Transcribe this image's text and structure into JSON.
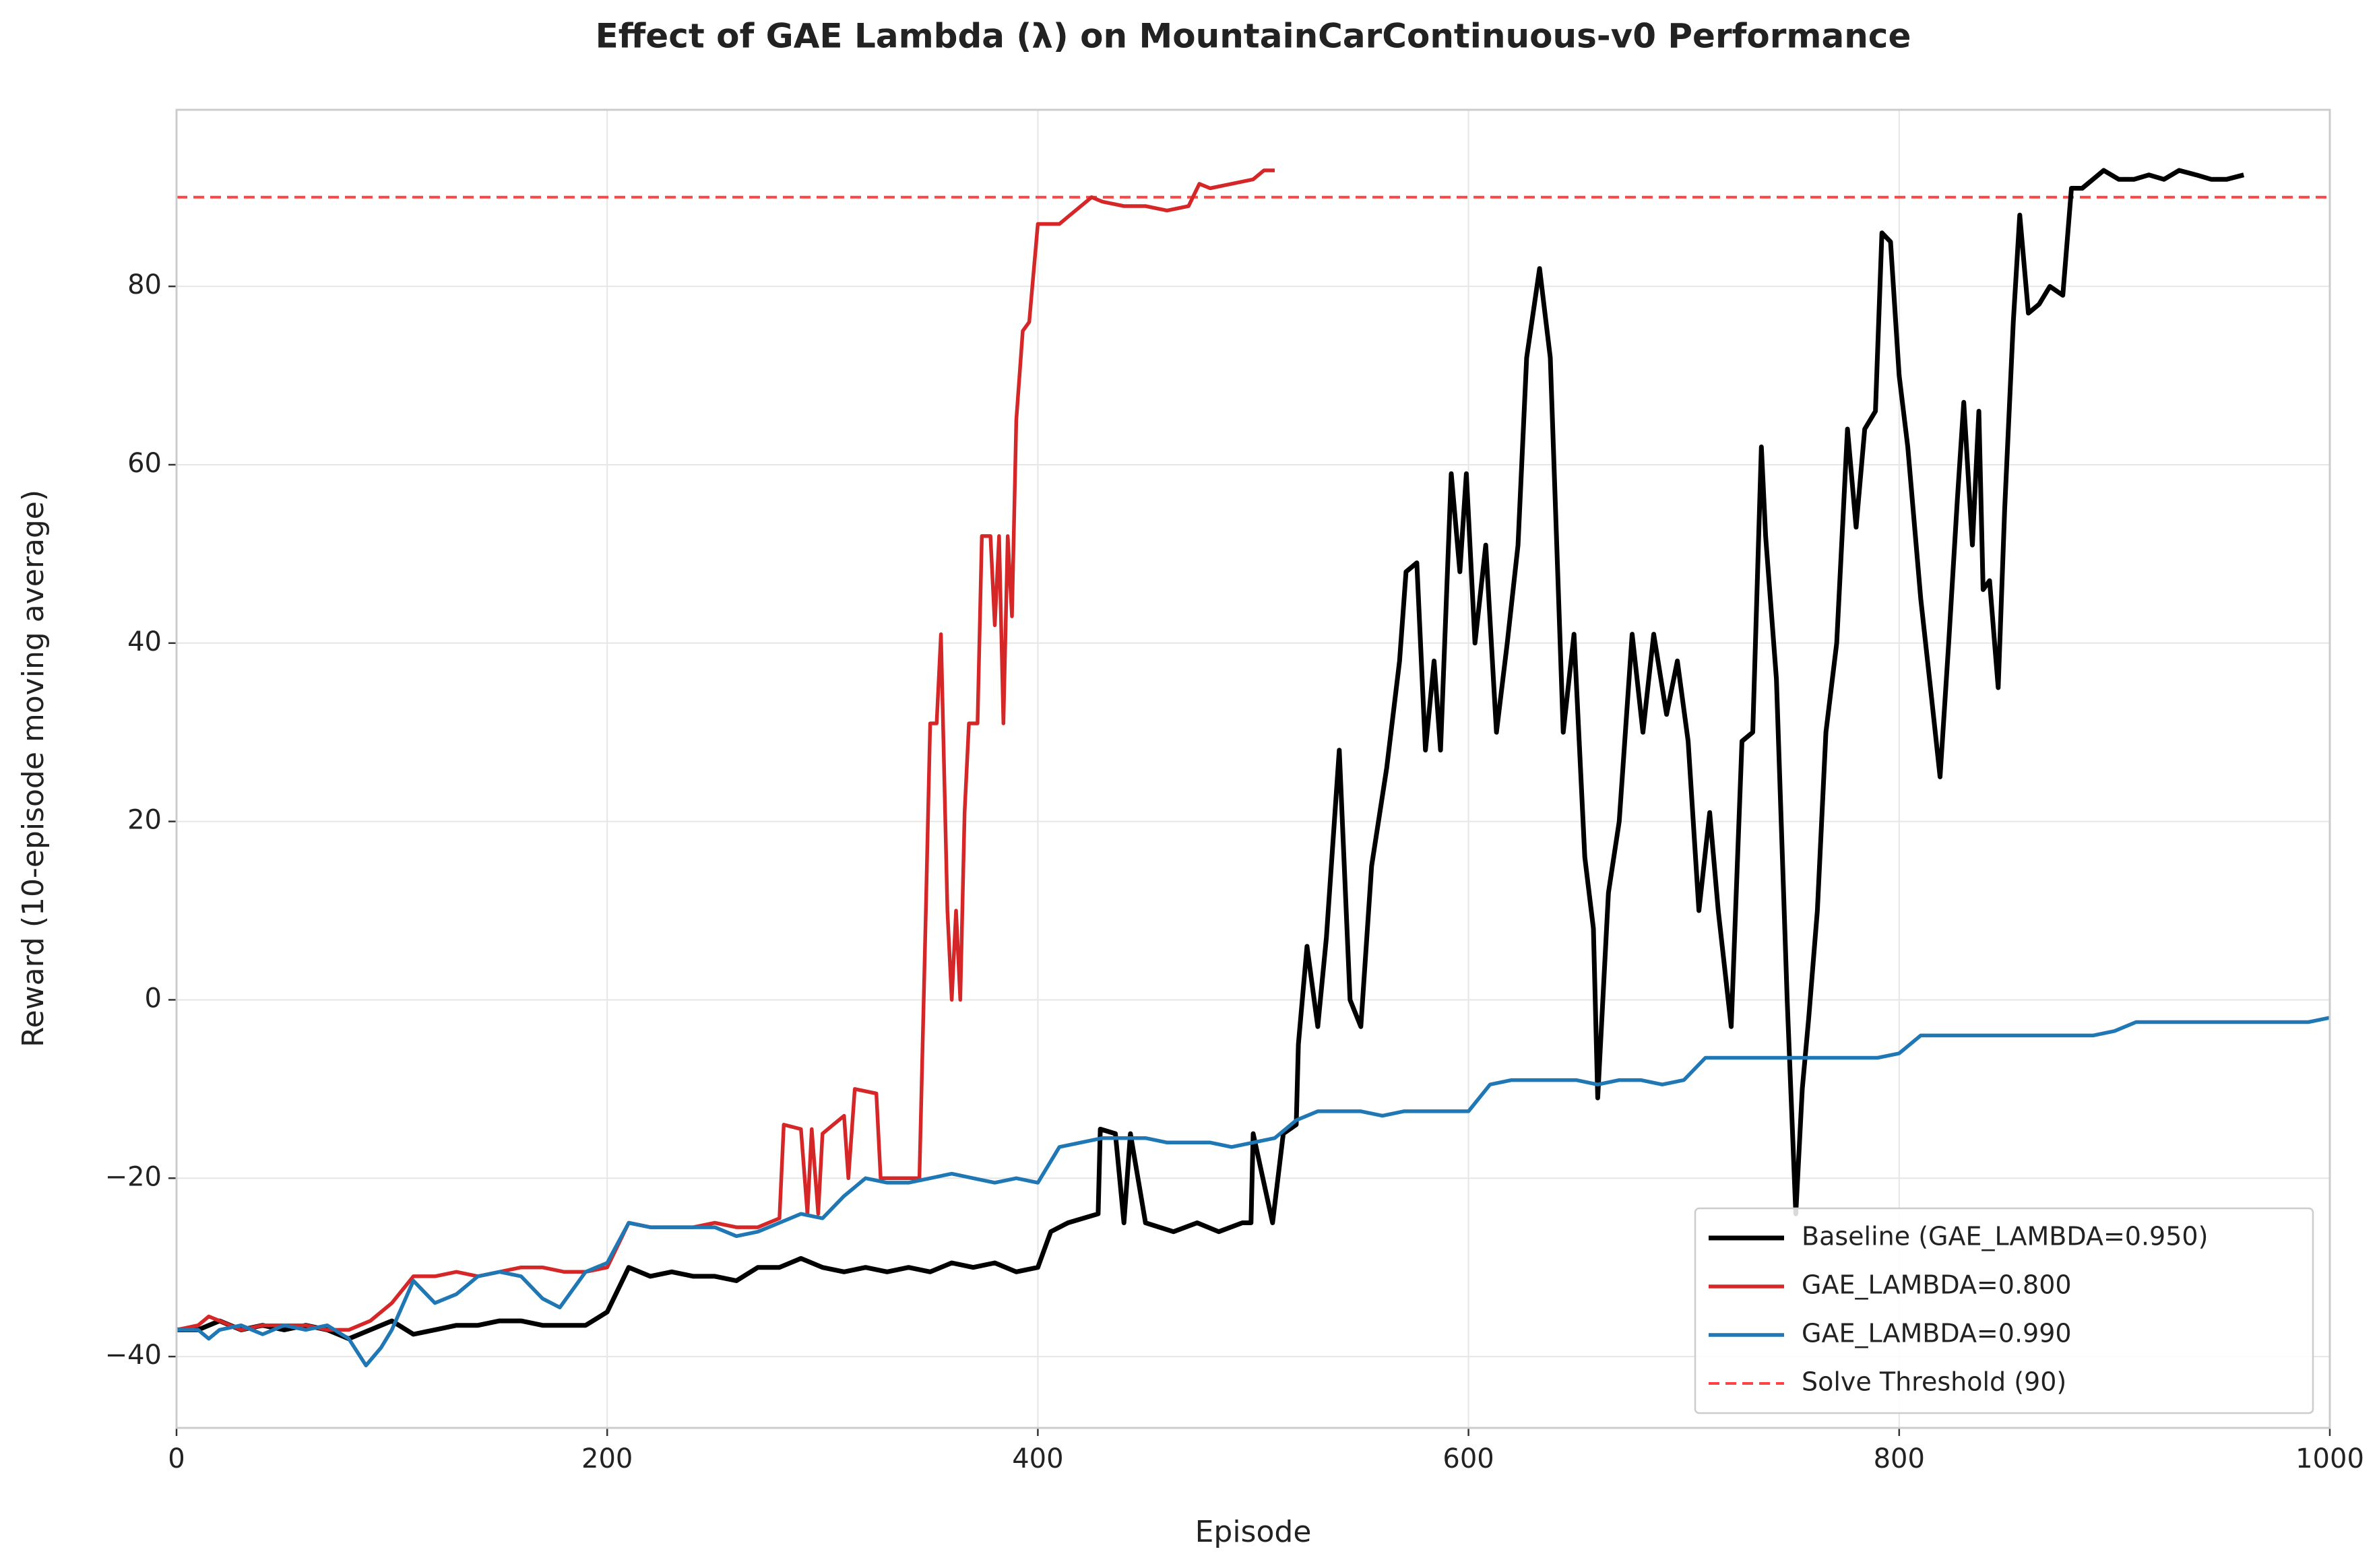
{
  "chart_data": {
    "type": "line",
    "title": "Effect of GAE Lambda (λ) on MountainCarContinuous-v0 Performance",
    "xlabel": "Episode",
    "ylabel": "Reward (10-episode moving average)",
    "xlim": [
      0,
      1000
    ],
    "ylim": [
      -48,
      99.8
    ],
    "xticks": [
      0,
      200,
      400,
      600,
      800,
      1000
    ],
    "yticks": [
      {
        "value": -40,
        "label": "−40"
      },
      {
        "value": -20,
        "label": "−20"
      },
      0,
      20,
      40,
      60,
      80
    ],
    "grid": true,
    "legend": "lower right",
    "series": [
      {
        "name": "Baseline (GAE_LAMBDA=0.950)",
        "color": "#000000",
        "x": [
          0,
          10,
          20,
          30,
          40,
          50,
          60,
          70,
          80,
          90,
          100,
          110,
          120,
          130,
          140,
          150,
          160,
          170,
          180,
          190,
          200,
          210,
          220,
          230,
          240,
          250,
          260,
          270,
          280,
          290,
          300,
          310,
          320,
          330,
          340,
          350,
          360,
          370,
          380,
          390,
          400,
          406,
          414,
          428,
          429,
          436,
          440,
          443,
          450,
          463,
          474,
          484,
          495,
          499,
          500,
          509,
          514,
          520,
          521,
          525,
          530,
          534,
          540,
          545,
          550,
          555,
          562,
          568,
          571,
          576,
          580,
          584,
          587,
          592,
          596,
          599,
          603,
          608,
          613,
          618,
          623,
          627,
          633,
          638,
          644,
          649,
          654,
          658,
          660,
          665,
          670,
          676,
          681,
          686,
          692,
          697,
          702,
          707,
          712,
          716,
          722,
          727,
          732,
          736,
          738,
          743,
          748,
          752,
          755,
          758,
          762,
          766,
          771,
          776,
          780,
          784,
          789,
          792,
          796,
          800,
          804,
          810,
          815,
          819,
          823,
          827,
          830,
          834,
          837,
          839,
          842,
          846,
          849,
          853,
          856,
          860,
          865,
          870,
          876,
          880,
          885,
          890,
          895,
          902,
          909,
          916,
          923,
          930,
          938,
          945,
          952,
          960
        ],
        "values": [
          -37,
          -37,
          -36,
          -37,
          -36.5,
          -37,
          -36.5,
          -37,
          -38,
          -37,
          -36,
          -37.5,
          -37,
          -36.5,
          -36.5,
          -36,
          -36,
          -36.5,
          -36.5,
          -36.5,
          -35,
          -30,
          -31,
          -30.5,
          -31,
          -31,
          -31.5,
          -30,
          -30,
          -29,
          -30,
          -30.5,
          -30,
          -30.5,
          -30,
          -30.5,
          -29.5,
          -30,
          -29.5,
          -30.5,
          -30,
          -26,
          -25,
          -24,
          -14.5,
          -15,
          -25,
          -15,
          -25,
          -26,
          -25,
          -26,
          -25,
          -25,
          -15,
          -25,
          -15,
          -14,
          -5,
          6,
          -3,
          7,
          28,
          0,
          -3,
          15,
          26,
          38,
          48,
          49,
          28,
          38,
          28,
          59,
          48,
          59,
          40,
          51,
          30,
          40,
          51,
          72,
          82,
          72,
          30,
          41,
          16,
          8,
          -11,
          12,
          20,
          41,
          30,
          41,
          32,
          38,
          29,
          10,
          21,
          10,
          -3,
          29,
          30,
          62,
          52,
          36,
          0,
          -24,
          -10,
          -2,
          10,
          30,
          40,
          64,
          53,
          64,
          66,
          86,
          85,
          70,
          62,
          45,
          34,
          25,
          40,
          56,
          67,
          51,
          66,
          46,
          47,
          35,
          55,
          76,
          88,
          77,
          78,
          80,
          79,
          91,
          91,
          92,
          93,
          92,
          92,
          92.5,
          92,
          93,
          92.5,
          92,
          92,
          92.5
        ]
      },
      {
        "name": "GAE_LAMBDA=0.800",
        "color": "#d62728",
        "x": [
          0,
          10,
          15,
          20,
          30,
          40,
          50,
          60,
          70,
          80,
          90,
          100,
          110,
          120,
          130,
          140,
          150,
          160,
          170,
          180,
          190,
          200,
          210,
          220,
          230,
          240,
          250,
          260,
          270,
          280,
          282,
          290,
          293,
          295,
          298,
          300,
          305,
          310,
          312,
          315,
          325,
          327,
          345,
          348,
          350,
          353,
          355,
          358,
          360,
          362,
          364,
          366,
          368,
          372,
          374,
          378,
          380,
          382,
          384,
          386,
          388,
          390,
          393,
          396,
          400,
          405,
          410,
          415,
          420,
          425,
          430,
          440,
          450,
          460,
          470,
          475,
          480,
          490,
          500,
          505,
          510
        ],
        "values": [
          -37,
          -36.5,
          -35.5,
          -36,
          -37,
          -36.5,
          -36.5,
          -36.5,
          -37,
          -37,
          -36,
          -34,
          -31,
          -31,
          -30.5,
          -31,
          -30.5,
          -30,
          -30,
          -30.5,
          -30.5,
          -30,
          -25,
          -25.5,
          -25.5,
          -25.5,
          -25,
          -25.5,
          -25.5,
          -24.5,
          -14,
          -14.5,
          -24,
          -14.5,
          -24,
          -15,
          -14,
          -13,
          -20,
          -10,
          -10.5,
          -20,
          -20,
          10,
          31,
          31,
          41,
          10,
          0,
          10,
          0,
          21,
          31,
          31,
          52,
          52,
          42,
          52,
          31,
          52,
          43,
          65,
          75,
          76,
          87,
          87,
          87,
          88,
          89,
          90,
          89.5,
          89,
          89,
          88.5,
          89,
          91.5,
          91,
          91.5,
          92,
          93,
          93
        ]
      },
      {
        "name": "GAE_LAMBDA=0.990",
        "color": "#1f77b4",
        "x": [
          0,
          10,
          15,
          20,
          30,
          40,
          50,
          60,
          70,
          80,
          88,
          95,
          100,
          110,
          120,
          130,
          140,
          150,
          160,
          170,
          178,
          190,
          200,
          210,
          220,
          230,
          240,
          250,
          260,
          270,
          280,
          290,
          300,
          310,
          320,
          330,
          340,
          350,
          360,
          370,
          380,
          390,
          400,
          410,
          420,
          430,
          440,
          450,
          460,
          470,
          480,
          490,
          500,
          510,
          520,
          530,
          540,
          550,
          560,
          570,
          580,
          590,
          600,
          610,
          620,
          630,
          640,
          650,
          660,
          670,
          680,
          690,
          700,
          710,
          720,
          730,
          740,
          750,
          760,
          770,
          780,
          790,
          800,
          810,
          820,
          830,
          840,
          850,
          860,
          870,
          880,
          890,
          900,
          910,
          920,
          930,
          940,
          950,
          960,
          970,
          980,
          990,
          1000
        ],
        "values": [
          -37,
          -37,
          -38,
          -37,
          -36.5,
          -37.5,
          -36.5,
          -37,
          -36.5,
          -38,
          -41,
          -39,
          -37,
          -31.5,
          -34,
          -33,
          -31,
          -30.5,
          -31,
          -33.5,
          -34.5,
          -30.5,
          -29.5,
          -25,
          -25.5,
          -25.5,
          -25.5,
          -25.5,
          -26.5,
          -26,
          -25,
          -24,
          -24.5,
          -22,
          -20,
          -20.5,
          -20.5,
          -20,
          -19.5,
          -20,
          -20.5,
          -20,
          -20.5,
          -16.5,
          -16,
          -15.5,
          -15.5,
          -15.5,
          -16,
          -16,
          -16,
          -16.5,
          -16,
          -15.5,
          -13.5,
          -12.5,
          -12.5,
          -12.5,
          -13,
          -12.5,
          -12.5,
          -12.5,
          -12.5,
          -9.5,
          -9,
          -9,
          -9,
          -9,
          -9.5,
          -9,
          -9,
          -9.5,
          -9,
          -6.5,
          -6.5,
          -6.5,
          -6.5,
          -6.5,
          -6.5,
          -6.5,
          -6.5,
          -6.5,
          -6,
          -4,
          -4,
          -4,
          -4,
          -4,
          -4,
          -4,
          -4,
          -4,
          -3.5,
          -2.5,
          -2.5,
          -2.5,
          -2.5,
          -2.5,
          -2.5,
          -2.5,
          -2.5,
          -2.5,
          -2
        ]
      }
    ],
    "threshold": {
      "name": "Solve Threshold (90)",
      "value": 90,
      "color": "#ff4444"
    }
  }
}
